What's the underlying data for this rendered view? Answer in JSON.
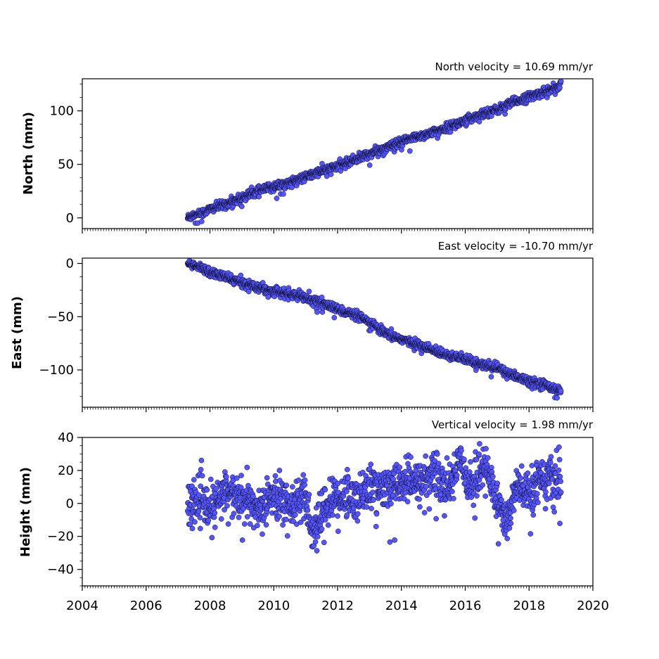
{
  "chart_data": [
    {
      "type": "scatter",
      "title": "North velocity = 10.69 mm/yr",
      "ylabel": "North (mm)",
      "ylim": [
        -10,
        130
      ],
      "xlim": [
        2004,
        2020
      ],
      "yticks": [
        "0",
        "50",
        "100"
      ],
      "marker_color": "#5555ff",
      "velocity_mm_per_yr": 10.69,
      "series": [
        {
          "x": [
            2007.3,
            2007.5,
            2007.8,
            2008.0,
            2008.5,
            2009.0,
            2009.5,
            2010.0,
            2010.5,
            2011.0,
            2011.5,
            2012.0,
            2012.5,
            2013.0,
            2013.5,
            2014.0,
            2014.5,
            2015.0,
            2015.5,
            2016.0,
            2016.5,
            2017.0,
            2017.5,
            2018.0,
            2018.5,
            2019.0
          ],
          "y": [
            0,
            3,
            5,
            8,
            13,
            19,
            25,
            29,
            33,
            38,
            44,
            48,
            54,
            60,
            65,
            71,
            76,
            80,
            85,
            91,
            97,
            101,
            108,
            113,
            118,
            124
          ]
        }
      ]
    },
    {
      "type": "scatter",
      "title": "East velocity = -10.70 mm/yr",
      "ylabel": "East (mm)",
      "ylim": [
        -135,
        5
      ],
      "xlim": [
        2004,
        2020
      ],
      "yticks": [
        "0",
        "−50",
        "−100"
      ],
      "marker_color": "#5555ff",
      "velocity_mm_per_yr": -10.7,
      "series": [
        {
          "x": [
            2007.3,
            2007.5,
            2007.8,
            2008.0,
            2008.5,
            2009.0,
            2009.5,
            2010.0,
            2010.5,
            2011.0,
            2011.5,
            2012.0,
            2012.5,
            2013.0,
            2013.5,
            2014.0,
            2014.5,
            2015.0,
            2015.5,
            2016.0,
            2016.5,
            2017.0,
            2017.5,
            2018.0,
            2018.5,
            2019.0
          ],
          "y": [
            0,
            -2,
            -5,
            -8,
            -13,
            -18,
            -22,
            -26,
            -29,
            -32,
            -37,
            -43,
            -48,
            -55,
            -66,
            -71,
            -76,
            -82,
            -86,
            -90,
            -95,
            -98,
            -105,
            -110,
            -114,
            -120
          ]
        }
      ]
    },
    {
      "type": "scatter",
      "title": "Vertical velocity = 1.98 mm/yr",
      "ylabel": "Height (mm)",
      "ylim": [
        -50,
        40
      ],
      "xlim": [
        2004,
        2020
      ],
      "yticks": [
        "40",
        "20",
        "0",
        "−20",
        "−40"
      ],
      "xticks": [
        "2004",
        "2006",
        "2008",
        "2010",
        "2012",
        "2014",
        "2016",
        "2018",
        "2020"
      ],
      "marker_color": "#5555ff",
      "velocity_mm_per_yr": 1.98,
      "series": [
        {
          "x": [
            2007.3,
            2007.7,
            2008.0,
            2008.5,
            2009.0,
            2009.5,
            2010.0,
            2010.5,
            2011.0,
            2011.2,
            2011.5,
            2012.0,
            2012.5,
            2013.0,
            2013.5,
            2014.0,
            2014.5,
            2015.0,
            2015.5,
            2015.8,
            2016.2,
            2016.6,
            2017.0,
            2017.3,
            2017.6,
            2018.0,
            2018.4,
            2018.8,
            2019.0
          ],
          "y": [
            0,
            2,
            -5,
            8,
            2,
            -3,
            6,
            0,
            2,
            -20,
            -5,
            5,
            3,
            10,
            8,
            13,
            12,
            18,
            8,
            28,
            10,
            24,
            2,
            -12,
            10,
            5,
            18,
            12,
            14
          ]
        }
      ]
    }
  ]
}
